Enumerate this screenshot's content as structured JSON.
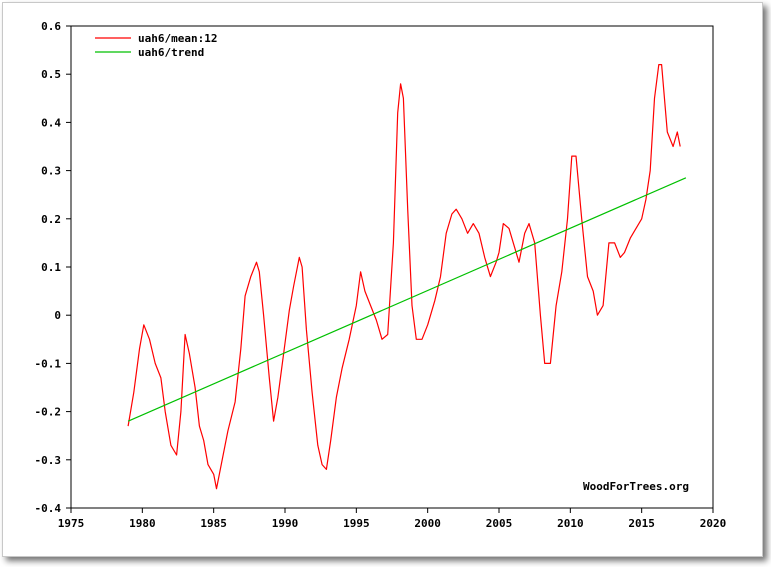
{
  "chart_data": {
    "type": "line",
    "title": "",
    "xlabel": "",
    "ylabel": "",
    "xlim": [
      1975,
      2020
    ],
    "ylim": [
      -0.4,
      0.6
    ],
    "x_ticks": [
      1975,
      1980,
      1985,
      1990,
      1995,
      2000,
      2005,
      2010,
      2015,
      2020
    ],
    "y_ticks": [
      -0.4,
      -0.3,
      -0.2,
      -0.1,
      0,
      0.1,
      0.2,
      0.3,
      0.4,
      0.5,
      0.6
    ],
    "y_tick_labels": [
      "-0.4",
      "-0.3",
      "-0.2",
      "-0.1",
      "0",
      "0.1",
      "0.2",
      "0.3",
      "0.4",
      "0.5",
      "0.6"
    ],
    "grid": false,
    "legend": "top-left",
    "credit": "WoodForTrees.org",
    "series": [
      {
        "name": "uah6/mean:12",
        "color": "#ff0000",
        "x": [
          1979.0,
          1979.4,
          1979.8,
          1980.1,
          1980.5,
          1980.9,
          1981.3,
          1981.6,
          1982.0,
          1982.4,
          1982.7,
          1983.0,
          1983.3,
          1983.7,
          1984.0,
          1984.3,
          1984.6,
          1985.0,
          1985.2,
          1985.6,
          1986.0,
          1986.5,
          1986.9,
          1987.2,
          1987.6,
          1988.0,
          1988.2,
          1988.5,
          1988.9,
          1989.2,
          1989.5,
          1989.9,
          1990.3,
          1990.6,
          1991.0,
          1991.2,
          1991.5,
          1991.9,
          1992.3,
          1992.6,
          1992.9,
          1993.2,
          1993.6,
          1994.0,
          1994.5,
          1995.0,
          1995.3,
          1995.6,
          1996.0,
          1996.4,
          1996.8,
          1997.2,
          1997.6,
          1997.9,
          1998.1,
          1998.3,
          1998.6,
          1998.9,
          1999.2,
          1999.6,
          2000.0,
          2000.5,
          2000.9,
          2001.3,
          2001.7,
          2002.0,
          2002.4,
          2002.8,
          2003.2,
          2003.6,
          2004.0,
          2004.4,
          2004.8,
          2005.0,
          2005.3,
          2005.7,
          2006.0,
          2006.4,
          2006.8,
          2007.1,
          2007.5,
          2007.9,
          2008.2,
          2008.6,
          2009.0,
          2009.4,
          2009.8,
          2010.1,
          2010.4,
          2010.8,
          2011.2,
          2011.6,
          2011.9,
          2012.3,
          2012.7,
          2013.1,
          2013.5,
          2013.8,
          2014.2,
          2014.6,
          2015.0,
          2015.3,
          2015.6,
          2015.9,
          2016.2,
          2016.4,
          2016.8,
          2017.2,
          2017.5,
          2017.7
        ],
        "values": [
          -0.23,
          -0.16,
          -0.07,
          -0.02,
          -0.05,
          -0.1,
          -0.13,
          -0.2,
          -0.27,
          -0.29,
          -0.2,
          -0.04,
          -0.08,
          -0.15,
          -0.23,
          -0.26,
          -0.31,
          -0.33,
          -0.36,
          -0.3,
          -0.24,
          -0.18,
          -0.07,
          0.04,
          0.08,
          0.11,
          0.09,
          0.0,
          -0.13,
          -0.22,
          -0.17,
          -0.08,
          0.01,
          0.06,
          0.12,
          0.1,
          -0.03,
          -0.16,
          -0.27,
          -0.31,
          -0.32,
          -0.26,
          -0.17,
          -0.11,
          -0.05,
          0.02,
          0.09,
          0.05,
          0.02,
          -0.01,
          -0.05,
          -0.04,
          0.15,
          0.42,
          0.48,
          0.45,
          0.22,
          0.02,
          -0.05,
          -0.05,
          -0.02,
          0.03,
          0.08,
          0.17,
          0.21,
          0.22,
          0.2,
          0.17,
          0.19,
          0.17,
          0.12,
          0.08,
          0.11,
          0.13,
          0.19,
          0.18,
          0.15,
          0.11,
          0.17,
          0.19,
          0.15,
          0.0,
          -0.1,
          -0.1,
          0.02,
          0.09,
          0.2,
          0.33,
          0.33,
          0.2,
          0.08,
          0.05,
          0.0,
          0.02,
          0.15,
          0.15,
          0.12,
          0.13,
          0.16,
          0.18,
          0.2,
          0.24,
          0.3,
          0.45,
          0.52,
          0.52,
          0.38,
          0.35,
          0.38,
          0.35
        ]
      },
      {
        "name": "uah6/trend",
        "color": "#00c000",
        "x": [
          1979.0,
          2018.1
        ],
        "values": [
          -0.22,
          0.285
        ]
      }
    ]
  }
}
